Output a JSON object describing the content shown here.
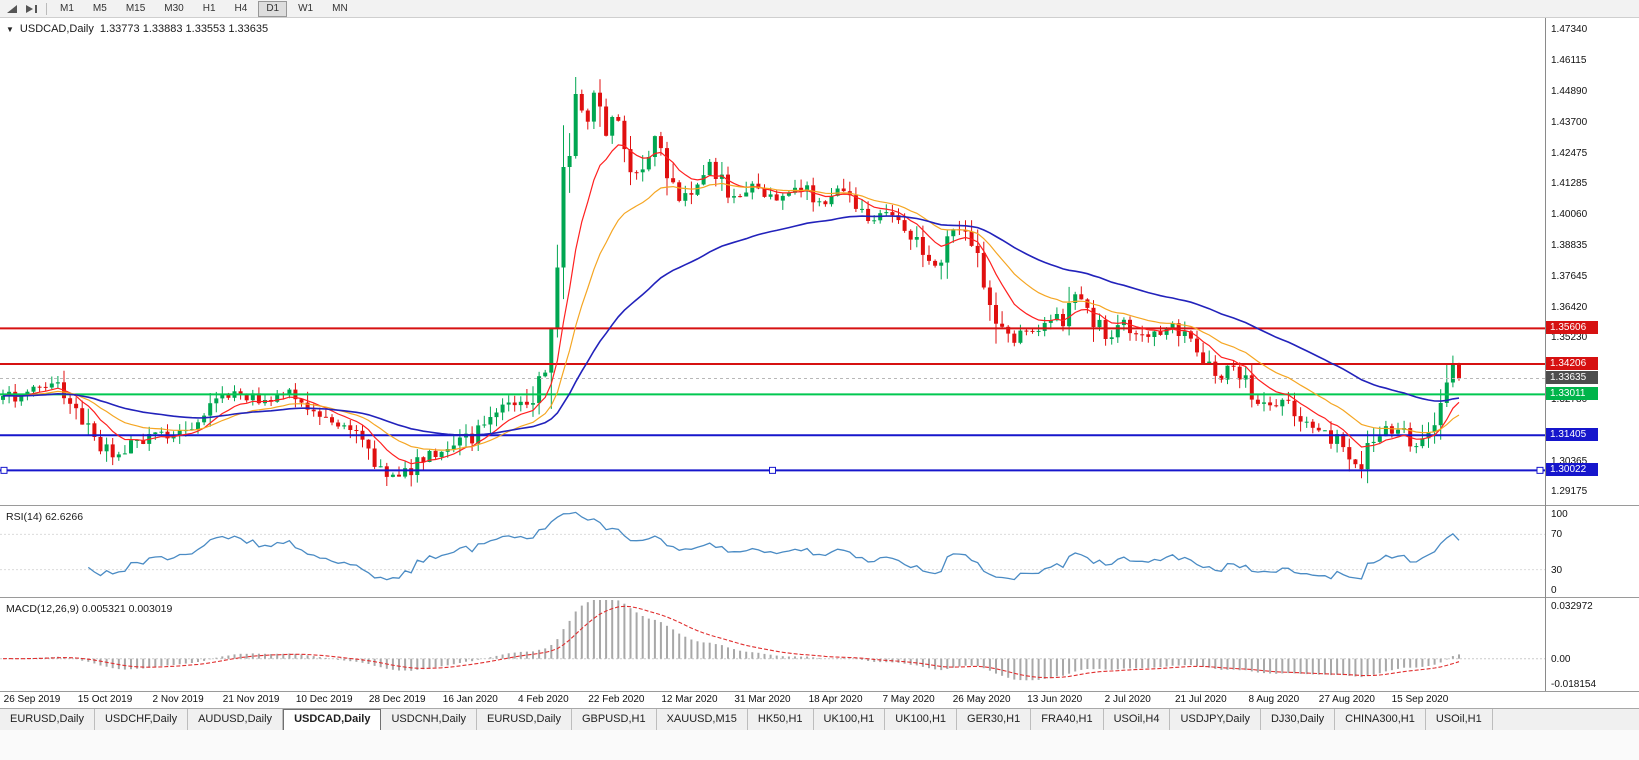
{
  "toolbar": {
    "icons": [
      "auto-scroll-icon",
      "chart-shift-icon"
    ],
    "timeframes": [
      "M1",
      "M5",
      "M15",
      "M30",
      "H1",
      "H4",
      "D1",
      "W1",
      "MN"
    ],
    "active_timeframe": "D1"
  },
  "chart": {
    "symbol_period": "USDCAD,Daily",
    "ohlc": "1.33773 1.33883 1.33553 1.33635"
  },
  "price_axis": {
    "labels": [
      "1.47340",
      "1.46115",
      "1.44890",
      "1.43700",
      "1.42475",
      "1.41285",
      "1.40060",
      "1.38835",
      "1.37645",
      "1.36420",
      "1.35230",
      "1.32780",
      "1.30365",
      "1.29175"
    ],
    "badges": [
      {
        "value": "1.35606",
        "color": "#d61111"
      },
      {
        "value": "1.34206",
        "color": "#d61111"
      },
      {
        "value": "1.33635",
        "color": "#4d4d4d"
      },
      {
        "value": "1.33011",
        "color": "#00b44a"
      },
      {
        "value": "1.31405",
        "color": "#1616cc"
      },
      {
        "value": "1.30022",
        "color": "#1616cc"
      }
    ]
  },
  "rsi": {
    "label": "RSI(14) 62.6266",
    "period": 14,
    "value": 62.6266,
    "color": "#4a8bc4",
    "levels": [
      {
        "label": "100",
        "value": 100
      },
      {
        "label": "70",
        "value": 70
      },
      {
        "label": "30",
        "value": 30
      },
      {
        "label": "0",
        "value": 0
      }
    ]
  },
  "macd": {
    "label": "MACD(12,26,9) 0.005321 0.003019",
    "fast": 12,
    "slow": 26,
    "signal_period": 9,
    "value": 0.005321,
    "signal": 0.003019,
    "histogram_color": "#a8a8a8",
    "signal_color": "#e03030",
    "axis": [
      {
        "label": "0.032972",
        "value": 0.032972
      },
      {
        "label": "0.00",
        "value": 0
      },
      {
        "label": "-0.018154",
        "value": -0.018154
      }
    ]
  },
  "date_axis": [
    "26 Sep 2019",
    "15 Oct 2019",
    "2 Nov 2019",
    "21 Nov 2019",
    "10 Dec 2019",
    "28 Dec 2019",
    "16 Jan 2020",
    "4 Feb 2020",
    "22 Feb 2020",
    "12 Mar 2020",
    "31 Mar 2020",
    "18 Apr 2020",
    "7 May 2020",
    "26 May 2020",
    "13 Jun 2020",
    "2 Jul 2020",
    "21 Jul 2020",
    "8 Aug 2020",
    "27 Aug 2020",
    "15 Sep 2020"
  ],
  "tabs": {
    "items": [
      "EURUSD,Daily",
      "USDCHF,Daily",
      "AUDUSD,Daily",
      "USDCAD,Daily",
      "USDCNH,Daily",
      "EURUSD,Daily",
      "GBPUSD,H1",
      "XAUUSD,M15",
      "HK50,H1",
      "UK100,H1",
      "UK100,H1",
      "GER30,H1",
      "FRA40,H1",
      "USOil,H4",
      "USDJPY,Daily",
      "DJ30,Daily",
      "CHINA300,H1",
      "USOil,H1"
    ],
    "active_index": 3
  },
  "chart_data": {
    "type": "candlestick",
    "symbol": "USDCAD",
    "timeframe": "Daily",
    "bars": 240,
    "bar_span": 1462,
    "price_range": {
      "top": 1.4781,
      "bottom": 1.2866
    },
    "current_price": 1.33635,
    "colors": {
      "up": "#00a651",
      "down": "#e01010"
    },
    "moving_averages": [
      {
        "period": 9,
        "color": "#ff2020",
        "width": 1.2
      },
      {
        "period": 20,
        "color": "#f5a623",
        "width": 1.2
      },
      {
        "period": 50,
        "color": "#2222bb",
        "width": 1.6
      }
    ],
    "hlines": [
      {
        "price": 1.35606,
        "color": "#d61111",
        "width": 2,
        "selected": false
      },
      {
        "price": 1.34206,
        "color": "#d61111",
        "width": 2,
        "selected": false
      },
      {
        "price": 1.33011,
        "color": "#00c850",
        "width": 2,
        "selected": false
      },
      {
        "price": 1.31405,
        "color": "#1616cc",
        "width": 2,
        "selected": false
      },
      {
        "price": 1.30022,
        "color": "#1616cc",
        "width": 2,
        "selected": true
      }
    ],
    "close_anchors": [
      [
        0,
        1.3275
      ],
      [
        18,
        1.33
      ],
      [
        38,
        1.332
      ],
      [
        55,
        1.333
      ],
      [
        68,
        1.328
      ],
      [
        80,
        1.323
      ],
      [
        95,
        1.313
      ],
      [
        108,
        1.3075
      ],
      [
        118,
        1.306
      ],
      [
        132,
        1.31
      ],
      [
        150,
        1.313
      ],
      [
        168,
        1.314
      ],
      [
        185,
        1.3165
      ],
      [
        200,
        1.32
      ],
      [
        215,
        1.3265
      ],
      [
        232,
        1.33
      ],
      [
        248,
        1.329
      ],
      [
        262,
        1.3275
      ],
      [
        275,
        1.329
      ],
      [
        288,
        1.33
      ],
      [
        302,
        1.3265
      ],
      [
        318,
        1.32
      ],
      [
        332,
        1.318
      ],
      [
        345,
        1.317
      ],
      [
        358,
        1.312
      ],
      [
        372,
        1.304
      ],
      [
        385,
        1.298
      ],
      [
        395,
        1.296
      ],
      [
        405,
        1.2985
      ],
      [
        418,
        1.304
      ],
      [
        432,
        1.306
      ],
      [
        445,
        1.306
      ],
      [
        458,
        1.31
      ],
      [
        472,
        1.314
      ],
      [
        485,
        1.319
      ],
      [
        498,
        1.3235
      ],
      [
        510,
        1.327
      ],
      [
        520,
        1.3245
      ],
      [
        530,
        1.329
      ],
      [
        540,
        1.339
      ],
      [
        548,
        1.353
      ],
      [
        555,
        1.375
      ],
      [
        561,
        1.395
      ],
      [
        567,
        1.415
      ],
      [
        572,
        1.438
      ],
      [
        577,
        1.46
      ],
      [
        582,
        1.442
      ],
      [
        588,
        1.435
      ],
      [
        593,
        1.447
      ],
      [
        599,
        1.444
      ],
      [
        606,
        1.43
      ],
      [
        613,
        1.439
      ],
      [
        620,
        1.434
      ],
      [
        628,
        1.423
      ],
      [
        637,
        1.419
      ],
      [
        646,
        1.425
      ],
      [
        655,
        1.429
      ],
      [
        663,
        1.421
      ],
      [
        672,
        1.414
      ],
      [
        681,
        1.407
      ],
      [
        690,
        1.411
      ],
      [
        700,
        1.416
      ],
      [
        710,
        1.42
      ],
      [
        719,
        1.415
      ],
      [
        728,
        1.41
      ],
      [
        737,
        1.407
      ],
      [
        746,
        1.412
      ],
      [
        755,
        1.415
      ],
      [
        764,
        1.411
      ],
      [
        773,
        1.406
      ],
      [
        782,
        1.409
      ],
      [
        791,
        1.412
      ],
      [
        800,
        1.413
      ],
      [
        809,
        1.409
      ],
      [
        818,
        1.406
      ],
      [
        827,
        1.408
      ],
      [
        836,
        1.41
      ],
      [
        845,
        1.407
      ],
      [
        854,
        1.404
      ],
      [
        863,
        1.401
      ],
      [
        872,
        1.398
      ],
      [
        881,
        1.3995
      ],
      [
        890,
        1.402
      ],
      [
        899,
        1.399
      ],
      [
        908,
        1.395
      ],
      [
        917,
        1.39
      ],
      [
        926,
        1.385
      ],
      [
        935,
        1.383
      ],
      [
        944,
        1.387
      ],
      [
        953,
        1.395
      ],
      [
        962,
        1.392
      ],
      [
        971,
        1.389
      ],
      [
        980,
        1.38
      ],
      [
        989,
        1.37
      ],
      [
        997,
        1.36
      ],
      [
        1005,
        1.352
      ],
      [
        1013,
        1.35
      ],
      [
        1021,
        1.355
      ],
      [
        1029,
        1.353
      ],
      [
        1037,
        1.356
      ],
      [
        1045,
        1.36
      ],
      [
        1053,
        1.362
      ],
      [
        1061,
        1.356
      ],
      [
        1069,
        1.362
      ],
      [
        1077,
        1.369
      ],
      [
        1085,
        1.366
      ],
      [
        1093,
        1.36
      ],
      [
        1101,
        1.356
      ],
      [
        1109,
        1.353
      ],
      [
        1117,
        1.356
      ],
      [
        1125,
        1.358
      ],
      [
        1133,
        1.354
      ],
      [
        1141,
        1.356
      ],
      [
        1149,
        1.352
      ],
      [
        1157,
        1.354
      ],
      [
        1165,
        1.357
      ],
      [
        1173,
        1.358
      ],
      [
        1181,
        1.354
      ],
      [
        1189,
        1.351
      ],
      [
        1197,
        1.347
      ],
      [
        1205,
        1.343
      ],
      [
        1213,
        1.34
      ],
      [
        1221,
        1.338
      ],
      [
        1229,
        1.341
      ],
      [
        1237,
        1.34
      ],
      [
        1245,
        1.335
      ],
      [
        1253,
        1.331
      ],
      [
        1261,
        1.328
      ],
      [
        1269,
        1.325
      ],
      [
        1277,
        1.323
      ],
      [
        1285,
        1.327
      ],
      [
        1293,
        1.325
      ],
      [
        1301,
        1.321
      ],
      [
        1309,
        1.317
      ],
      [
        1317,
        1.314
      ],
      [
        1325,
        1.316
      ],
      [
        1333,
        1.313
      ],
      [
        1341,
        1.31
      ],
      [
        1349,
        1.306
      ],
      [
        1356,
        1.301
      ],
      [
        1362,
        1.304
      ],
      [
        1370,
        1.309
      ],
      [
        1378,
        1.314
      ],
      [
        1386,
        1.316
      ],
      [
        1394,
        1.314
      ],
      [
        1402,
        1.317
      ],
      [
        1410,
        1.313
      ],
      [
        1418,
        1.311
      ],
      [
        1426,
        1.316
      ],
      [
        1434,
        1.322
      ],
      [
        1442,
        1.33
      ],
      [
        1448,
        1.337
      ],
      [
        1453,
        1.341
      ],
      [
        1457,
        1.339
      ],
      [
        1460,
        1.3364
      ]
    ]
  }
}
